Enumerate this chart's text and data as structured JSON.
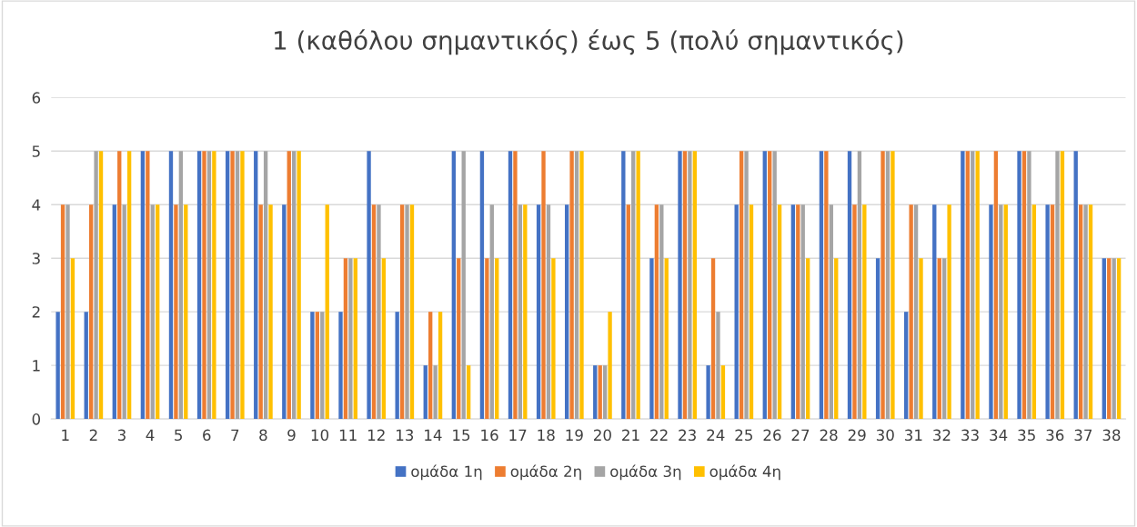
{
  "chart_data": {
    "type": "bar",
    "title": "1 (καθόλου σημαντικός) έως 5 (πολύ σημαντικός)",
    "categories": [
      "1",
      "2",
      "3",
      "4",
      "5",
      "6",
      "7",
      "8",
      "9",
      "10",
      "11",
      "12",
      "13",
      "14",
      "15",
      "16",
      "17",
      "18",
      "19",
      "20",
      "21",
      "22",
      "23",
      "24",
      "25",
      "26",
      "27",
      "28",
      "29",
      "30",
      "31",
      "32",
      "33",
      "34",
      "35",
      "36",
      "37",
      "38"
    ],
    "series": [
      {
        "name": "ομάδα 1η",
        "color": "#4472c4",
        "values": [
          2,
          2,
          4,
          5,
          5,
          5,
          5,
          5,
          4,
          2,
          2,
          5,
          2,
          1,
          5,
          5,
          5,
          4,
          4,
          1,
          5,
          3,
          5,
          1,
          4,
          5,
          4,
          5,
          5,
          3,
          2,
          4,
          5,
          4,
          5,
          4,
          5,
          3
        ]
      },
      {
        "name": "ομάδα 2η",
        "color": "#ed7d31",
        "values": [
          4,
          4,
          5,
          5,
          4,
          5,
          5,
          4,
          5,
          2,
          3,
          4,
          4,
          2,
          3,
          3,
          5,
          5,
          5,
          1,
          4,
          4,
          5,
          3,
          5,
          5,
          4,
          5,
          4,
          5,
          4,
          3,
          5,
          5,
          5,
          4,
          4,
          3
        ]
      },
      {
        "name": "ομάδα 3η",
        "color": "#a5a5a5",
        "values": [
          4,
          5,
          4,
          4,
          5,
          5,
          5,
          5,
          5,
          2,
          3,
          4,
          4,
          1,
          5,
          4,
          4,
          4,
          5,
          1,
          5,
          4,
          5,
          2,
          5,
          5,
          4,
          4,
          5,
          5,
          4,
          3,
          5,
          4,
          5,
          5,
          4,
          3
        ]
      },
      {
        "name": "ομάδα 4η",
        "color": "#ffc000",
        "values": [
          3,
          5,
          5,
          4,
          4,
          5,
          5,
          4,
          5,
          4,
          3,
          3,
          4,
          2,
          1,
          3,
          4,
          3,
          5,
          2,
          5,
          3,
          5,
          1,
          4,
          4,
          3,
          3,
          4,
          5,
          3,
          4,
          5,
          4,
          4,
          5,
          4,
          3
        ]
      }
    ],
    "ylim": [
      0,
      6
    ],
    "yticks": [
      0,
      1,
      2,
      3,
      4,
      5,
      6
    ],
    "grid": "y",
    "legend": "bottom"
  }
}
